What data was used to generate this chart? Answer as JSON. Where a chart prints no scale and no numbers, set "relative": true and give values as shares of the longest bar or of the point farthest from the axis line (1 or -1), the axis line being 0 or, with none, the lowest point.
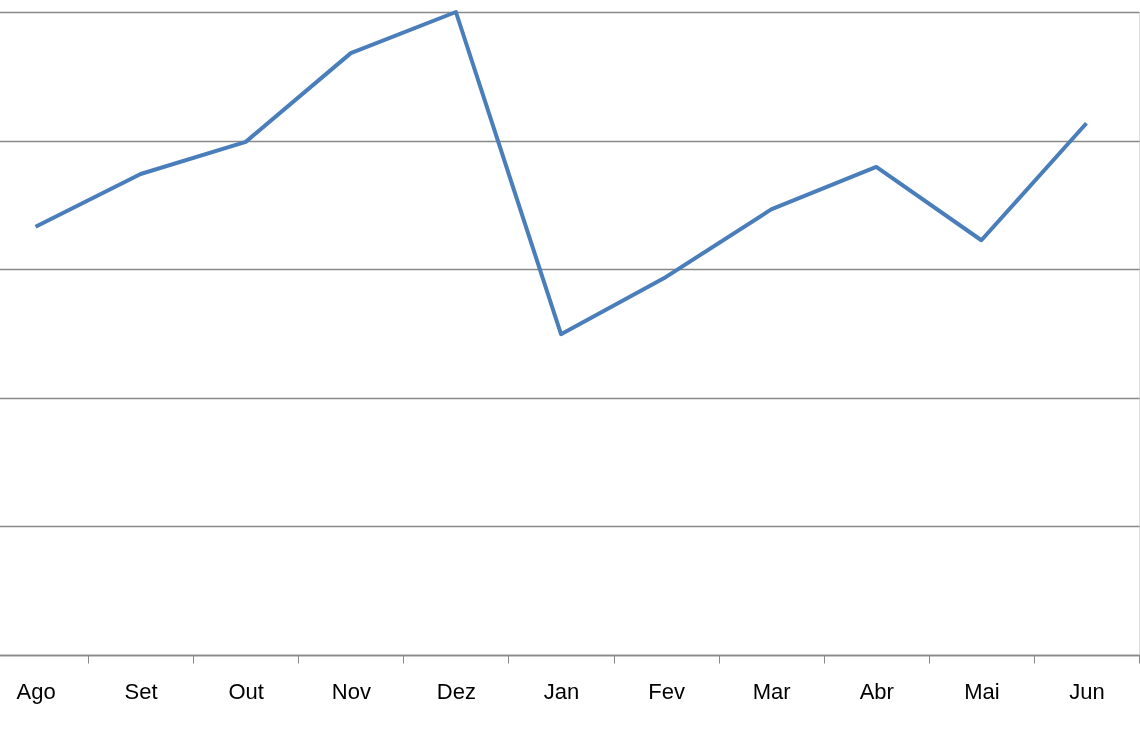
{
  "chart_data": {
    "type": "line",
    "relative": true,
    "categories": [
      "Ago",
      "Set",
      "Out",
      "Nov",
      "Dez",
      "Jan",
      "Fev",
      "Mar",
      "Abr",
      "Mai",
      "Jun"
    ],
    "series": [
      {
        "color": "#4a7ebb",
        "values": [
          0.666,
          0.748,
          0.798,
          0.936,
          1,
          0.499,
          0.588,
          0.693,
          0.759,
          0.645,
          0.827
        ]
      }
    ],
    "grid": "y",
    "marker": "none",
    "line_style": "solid"
  }
}
